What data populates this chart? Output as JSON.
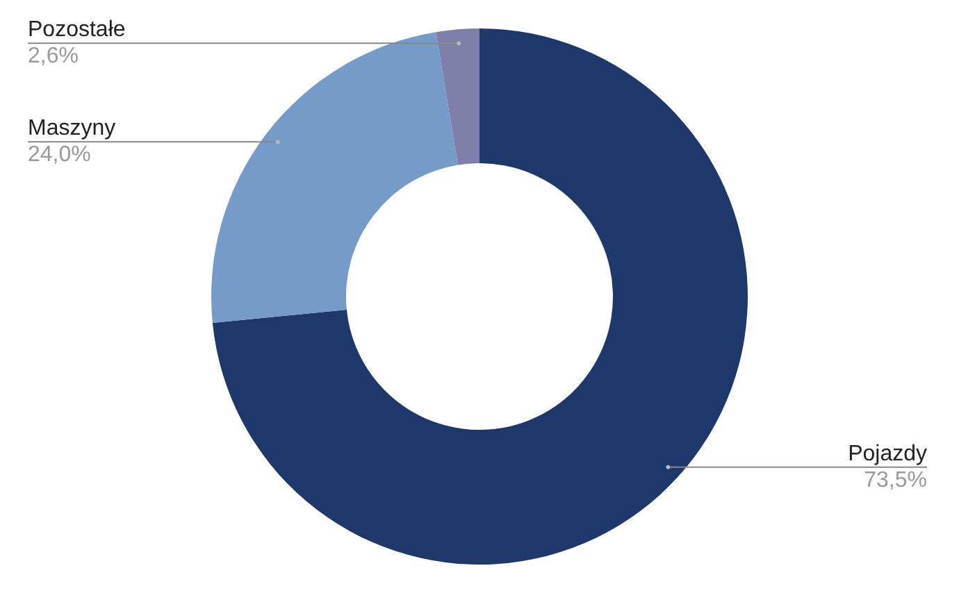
{
  "chart_data": {
    "type": "donut",
    "categories": [
      "Pojazdy",
      "Maszyny",
      "Pozostałe"
    ],
    "values": [
      73.5,
      24.0,
      2.6
    ],
    "colors": [
      "#1f386b",
      "#759cc9",
      "#7f7faa"
    ],
    "value_labels": [
      "73,5%",
      "24,0%",
      "2,6%"
    ]
  }
}
